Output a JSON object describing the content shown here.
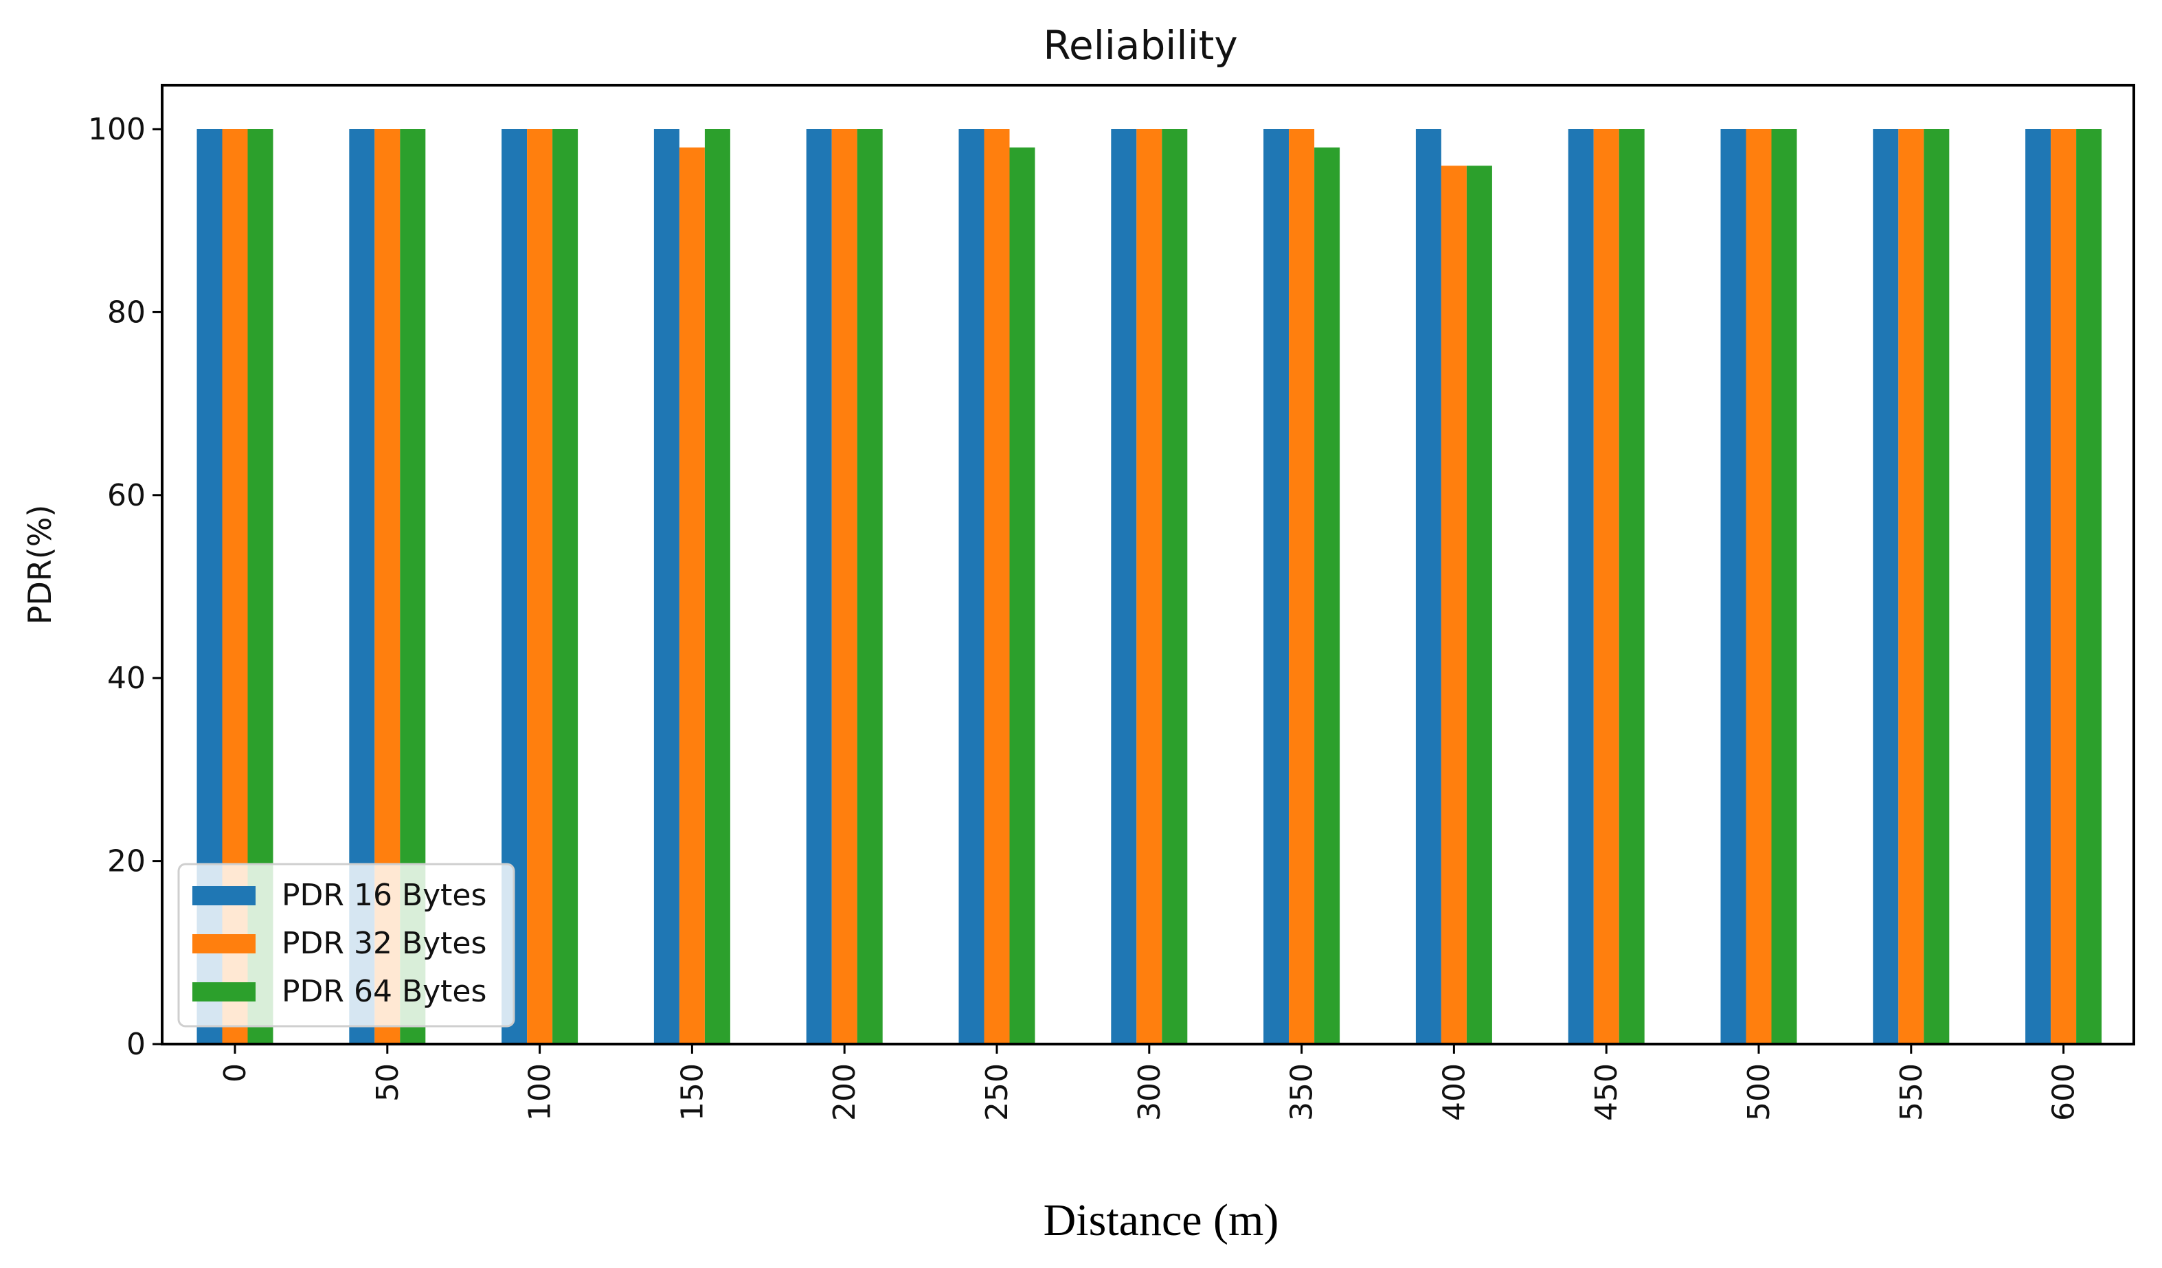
{
  "chart_data": {
    "type": "bar",
    "title": "Reliability",
    "xlabel": "Distance (m)",
    "ylabel": "PDR(%)",
    "ylim": [
      0,
      105
    ],
    "yticks": [
      0,
      20,
      40,
      60,
      80,
      100
    ],
    "categories": [
      "0",
      "50",
      "100",
      "150",
      "200",
      "250",
      "300",
      "350",
      "400",
      "450",
      "500",
      "550",
      "600"
    ],
    "series": [
      {
        "name": "PDR 16 Bytes",
        "color": "#1f77b4",
        "values": [
          100,
          100,
          100,
          100,
          100,
          100,
          100,
          100,
          100,
          100,
          100,
          100,
          100
        ]
      },
      {
        "name": "PDR 32 Bytes",
        "color": "#ff7f0e",
        "values": [
          100,
          100,
          100,
          98,
          100,
          100,
          100,
          100,
          96,
          100,
          100,
          100,
          100
        ]
      },
      {
        "name": "PDR 64 Bytes",
        "color": "#2ca02c",
        "values": [
          100,
          100,
          100,
          100,
          100,
          98,
          100,
          98,
          96,
          100,
          100,
          100,
          100
        ]
      }
    ],
    "legend_position": "lower-left",
    "grid": false
  }
}
